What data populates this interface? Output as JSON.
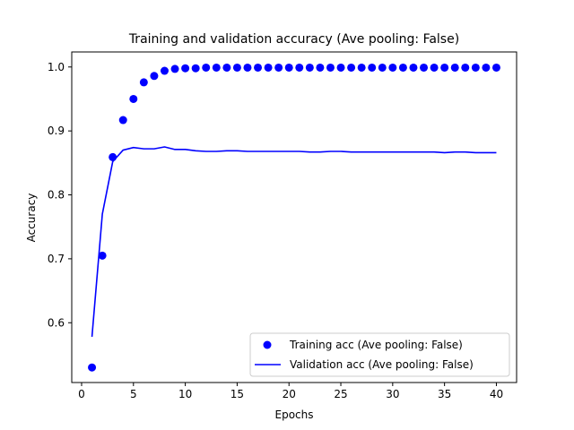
{
  "chart_data": {
    "type": "line",
    "title": "Training and validation accuracy (Ave pooling: False)",
    "xlabel": "Epochs",
    "ylabel": "Accuracy",
    "xlim": [
      -0.95,
      41.95
    ],
    "ylim": [
      0.5065,
      1.0235
    ],
    "xticks": [
      0,
      5,
      10,
      15,
      20,
      25,
      30,
      35,
      40
    ],
    "yticks": [
      0.6,
      0.7,
      0.8,
      0.9,
      1.0
    ],
    "ytick_labels": [
      "0.6",
      "0.7",
      "0.8",
      "0.9",
      "1.0"
    ],
    "legend_position": "lower right",
    "grid": false,
    "x": [
      1,
      2,
      3,
      4,
      5,
      6,
      7,
      8,
      9,
      10,
      11,
      12,
      13,
      14,
      15,
      16,
      17,
      18,
      19,
      20,
      21,
      22,
      23,
      24,
      25,
      26,
      27,
      28,
      29,
      30,
      31,
      32,
      33,
      34,
      35,
      36,
      37,
      38,
      39,
      40
    ],
    "series": [
      {
        "name": "Training acc (Ave pooling: False)",
        "style": "scatter",
        "color": "#0000ff",
        "values": [
          0.53,
          0.705,
          0.859,
          0.917,
          0.95,
          0.976,
          0.986,
          0.994,
          0.997,
          0.998,
          0.998,
          0.999,
          0.999,
          0.999,
          0.999,
          0.999,
          0.999,
          0.999,
          0.999,
          0.999,
          0.999,
          0.999,
          0.999,
          0.999,
          0.999,
          0.999,
          0.999,
          0.999,
          0.999,
          0.999,
          0.999,
          0.999,
          0.999,
          0.999,
          0.999,
          0.999,
          0.999,
          0.999,
          0.999,
          0.999
        ]
      },
      {
        "name": "Validation acc (Ave pooling: False)",
        "style": "line",
        "color": "#0000ff",
        "values": [
          0.578,
          0.77,
          0.852,
          0.87,
          0.874,
          0.872,
          0.872,
          0.875,
          0.871,
          0.871,
          0.869,
          0.868,
          0.868,
          0.869,
          0.869,
          0.868,
          0.868,
          0.868,
          0.868,
          0.868,
          0.868,
          0.867,
          0.867,
          0.868,
          0.868,
          0.867,
          0.867,
          0.867,
          0.867,
          0.867,
          0.867,
          0.867,
          0.867,
          0.867,
          0.866,
          0.867,
          0.867,
          0.866,
          0.866,
          0.866
        ]
      }
    ]
  }
}
